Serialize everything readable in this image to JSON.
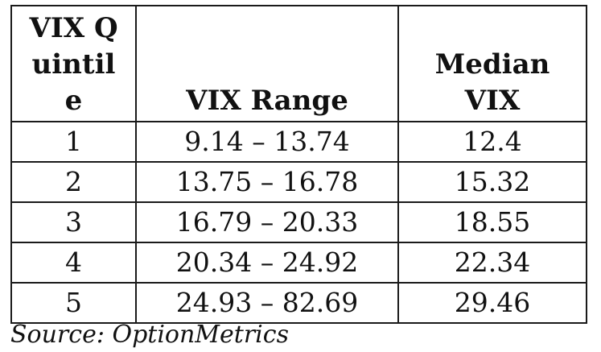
{
  "table": {
    "headers": {
      "quintile": "VIX Quintile",
      "range": "VIX Range",
      "median": "Median VIX"
    },
    "rows": [
      {
        "quintile": "1",
        "range": "9.14 – 13.74",
        "median": "12.4"
      },
      {
        "quintile": "2",
        "range": "13.75 – 16.78",
        "median": "15.32"
      },
      {
        "quintile": "3",
        "range": "16.79 – 20.33",
        "median": "18.55"
      },
      {
        "quintile": "4",
        "range": "20.34 – 24.92",
        "median": "22.34"
      },
      {
        "quintile": "5",
        "range": "24.93 – 82.69",
        "median": "29.46"
      }
    ]
  },
  "source": "Source: OptionMetrics"
}
